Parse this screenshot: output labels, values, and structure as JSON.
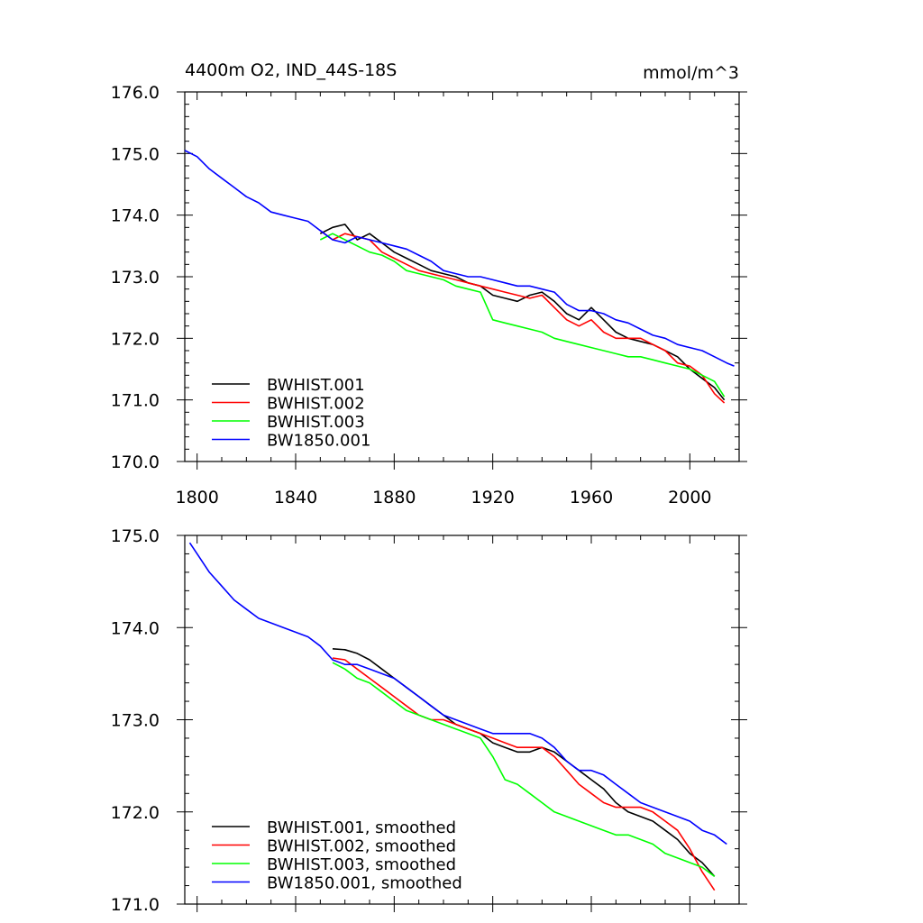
{
  "chart_data": [
    {
      "type": "line",
      "title": "4400m O2, IND_44S-18S",
      "units": "mmol/m^3",
      "xlim": [
        1795,
        2020
      ],
      "ylim": [
        170.0,
        176.0
      ],
      "xticks": [
        1800,
        1840,
        1880,
        1920,
        1960,
        2000
      ],
      "xtick_labels": [
        "1800",
        "1840",
        "1880",
        "1920",
        "1960",
        "2000"
      ],
      "yticks": [
        170.0,
        171.0,
        172.0,
        173.0,
        174.0,
        175.0,
        176.0
      ],
      "ytick_labels": [
        "170.0",
        "171.0",
        "172.0",
        "173.0",
        "174.0",
        "175.0",
        "176.0"
      ],
      "grid": false,
      "legend_position": "bottom-left",
      "series": [
        {
          "name": "BWHIST.001",
          "color": "#000000",
          "x": [
            1850,
            1855,
            1860,
            1865,
            1870,
            1875,
            1880,
            1885,
            1890,
            1895,
            1900,
            1905,
            1910,
            1915,
            1920,
            1925,
            1930,
            1935,
            1940,
            1945,
            1950,
            1955,
            1960,
            1965,
            1970,
            1975,
            1980,
            1985,
            1990,
            1995,
            2000,
            2005,
            2010,
            2014
          ],
          "y": [
            173.7,
            173.8,
            173.85,
            173.6,
            173.7,
            173.55,
            173.4,
            173.3,
            173.2,
            173.1,
            173.05,
            173.0,
            172.9,
            172.85,
            172.7,
            172.65,
            172.6,
            172.7,
            172.75,
            172.6,
            172.4,
            172.3,
            172.5,
            172.3,
            172.1,
            172.0,
            171.95,
            171.9,
            171.8,
            171.7,
            171.5,
            171.35,
            171.2,
            171.0
          ]
        },
        {
          "name": "BWHIST.002",
          "color": "#ff0000",
          "x": [
            1850,
            1855,
            1860,
            1865,
            1870,
            1875,
            1880,
            1885,
            1890,
            1895,
            1900,
            1905,
            1910,
            1915,
            1920,
            1925,
            1930,
            1935,
            1940,
            1945,
            1950,
            1955,
            1960,
            1965,
            1970,
            1975,
            1980,
            1985,
            1990,
            1995,
            2000,
            2005,
            2010,
            2014
          ],
          "y": [
            173.75,
            173.6,
            173.7,
            173.65,
            173.6,
            173.4,
            173.3,
            173.2,
            173.1,
            173.05,
            173.0,
            172.95,
            172.9,
            172.85,
            172.8,
            172.75,
            172.7,
            172.65,
            172.7,
            172.5,
            172.3,
            172.2,
            172.3,
            172.1,
            172.0,
            172.0,
            172.0,
            171.9,
            171.8,
            171.6,
            171.55,
            171.4,
            171.1,
            170.95
          ]
        },
        {
          "name": "BWHIST.003",
          "color": "#00ff00",
          "x": [
            1850,
            1855,
            1860,
            1865,
            1870,
            1875,
            1880,
            1885,
            1890,
            1895,
            1900,
            1905,
            1910,
            1915,
            1920,
            1925,
            1930,
            1935,
            1940,
            1945,
            1950,
            1955,
            1960,
            1965,
            1970,
            1975,
            1980,
            1985,
            1990,
            1995,
            2000,
            2005,
            2010,
            2014
          ],
          "y": [
            173.6,
            173.7,
            173.6,
            173.5,
            173.4,
            173.35,
            173.25,
            173.1,
            173.05,
            173.0,
            172.95,
            172.85,
            172.8,
            172.75,
            172.3,
            172.25,
            172.2,
            172.15,
            172.1,
            172.0,
            171.95,
            171.9,
            171.85,
            171.8,
            171.75,
            171.7,
            171.7,
            171.65,
            171.6,
            171.55,
            171.5,
            171.4,
            171.3,
            171.05
          ]
        },
        {
          "name": "BW1850.001",
          "color": "#0000ff",
          "x": [
            1795,
            1800,
            1805,
            1810,
            1815,
            1820,
            1825,
            1830,
            1835,
            1840,
            1845,
            1850,
            1855,
            1860,
            1865,
            1870,
            1875,
            1880,
            1885,
            1890,
            1895,
            1900,
            1905,
            1910,
            1915,
            1920,
            1925,
            1930,
            1935,
            1940,
            1945,
            1950,
            1955,
            1960,
            1965,
            1970,
            1975,
            1980,
            1985,
            1990,
            1995,
            2000,
            2005,
            2010,
            2015,
            2018
          ],
          "y": [
            175.05,
            174.95,
            174.75,
            174.6,
            174.45,
            174.3,
            174.2,
            174.05,
            174.0,
            173.95,
            173.9,
            173.75,
            173.6,
            173.55,
            173.65,
            173.6,
            173.55,
            173.5,
            173.45,
            173.35,
            173.25,
            173.1,
            173.05,
            173.0,
            173.0,
            172.95,
            172.9,
            172.85,
            172.85,
            172.8,
            172.75,
            172.55,
            172.45,
            172.45,
            172.4,
            172.3,
            172.25,
            172.15,
            172.05,
            172.0,
            171.9,
            171.85,
            171.8,
            171.7,
            171.6,
            171.55
          ]
        }
      ]
    },
    {
      "type": "line",
      "xlim": [
        1795,
        2020
      ],
      "ylim": [
        171.0,
        175.0
      ],
      "xticks": [
        1800,
        1840,
        1880,
        1920,
        1960,
        2000
      ],
      "yticks": [
        171.0,
        172.0,
        173.0,
        174.0,
        175.0
      ],
      "ytick_labels": [
        "171.0",
        "172.0",
        "173.0",
        "174.0",
        "175.0"
      ],
      "grid": false,
      "legend_position": "bottom-left",
      "series": [
        {
          "name": "BWHIST.001, smoothed",
          "color": "#000000",
          "x": [
            1855,
            1860,
            1865,
            1870,
            1875,
            1880,
            1885,
            1890,
            1895,
            1900,
            1905,
            1910,
            1915,
            1920,
            1925,
            1930,
            1935,
            1940,
            1945,
            1950,
            1955,
            1960,
            1965,
            1970,
            1975,
            1980,
            1985,
            1990,
            1995,
            2000,
            2005,
            2010
          ],
          "y": [
            173.77,
            173.76,
            173.72,
            173.65,
            173.55,
            173.45,
            173.35,
            173.25,
            173.15,
            173.05,
            172.95,
            172.9,
            172.85,
            172.75,
            172.7,
            172.65,
            172.65,
            172.7,
            172.65,
            172.55,
            172.45,
            172.35,
            172.25,
            172.1,
            172.0,
            171.95,
            171.9,
            171.8,
            171.7,
            171.55,
            171.45,
            171.3
          ]
        },
        {
          "name": "BWHIST.002, smoothed",
          "color": "#ff0000",
          "x": [
            1855,
            1860,
            1865,
            1870,
            1875,
            1880,
            1885,
            1890,
            1895,
            1900,
            1905,
            1910,
            1915,
            1920,
            1925,
            1930,
            1935,
            1940,
            1945,
            1950,
            1955,
            1960,
            1965,
            1970,
            1975,
            1980,
            1985,
            1990,
            1995,
            2000,
            2005,
            2010
          ],
          "y": [
            173.67,
            173.65,
            173.55,
            173.45,
            173.35,
            173.25,
            173.15,
            173.05,
            173.0,
            173.0,
            172.95,
            172.9,
            172.85,
            172.8,
            172.75,
            172.7,
            172.7,
            172.7,
            172.6,
            172.45,
            172.3,
            172.2,
            172.1,
            172.05,
            172.05,
            172.05,
            172.0,
            171.9,
            171.8,
            171.6,
            171.35,
            171.15
          ]
        },
        {
          "name": "BWHIST.003, smoothed",
          "color": "#00ff00",
          "x": [
            1855,
            1860,
            1865,
            1870,
            1875,
            1880,
            1885,
            1890,
            1895,
            1900,
            1905,
            1910,
            1915,
            1920,
            1925,
            1930,
            1935,
            1940,
            1945,
            1950,
            1955,
            1960,
            1965,
            1970,
            1975,
            1980,
            1985,
            1990,
            1995,
            2000,
            2005,
            2010
          ],
          "y": [
            173.62,
            173.55,
            173.45,
            173.4,
            173.3,
            173.2,
            173.1,
            173.05,
            173.0,
            172.95,
            172.9,
            172.85,
            172.8,
            172.6,
            172.35,
            172.3,
            172.2,
            172.1,
            172.0,
            171.95,
            171.9,
            171.85,
            171.8,
            171.75,
            171.75,
            171.7,
            171.65,
            171.55,
            171.5,
            171.45,
            171.4,
            171.3
          ]
        },
        {
          "name": "BW1850.001, smoothed",
          "color": "#0000ff",
          "x": [
            1797,
            1800,
            1805,
            1810,
            1815,
            1820,
            1825,
            1830,
            1835,
            1840,
            1845,
            1850,
            1855,
            1860,
            1865,
            1870,
            1875,
            1880,
            1885,
            1890,
            1895,
            1900,
            1905,
            1910,
            1915,
            1920,
            1925,
            1930,
            1935,
            1940,
            1945,
            1950,
            1955,
            1960,
            1965,
            1970,
            1975,
            1980,
            1985,
            1990,
            1995,
            2000,
            2005,
            2010,
            2015
          ],
          "y": [
            174.92,
            174.8,
            174.6,
            174.45,
            174.3,
            174.2,
            174.1,
            174.05,
            174.0,
            173.95,
            173.9,
            173.8,
            173.65,
            173.6,
            173.6,
            173.55,
            173.5,
            173.45,
            173.35,
            173.25,
            173.15,
            173.05,
            173.0,
            172.95,
            172.9,
            172.85,
            172.85,
            172.85,
            172.85,
            172.8,
            172.7,
            172.55,
            172.45,
            172.45,
            172.4,
            172.3,
            172.2,
            172.1,
            172.05,
            172.0,
            171.95,
            171.9,
            171.8,
            171.75,
            171.65
          ]
        }
      ]
    }
  ]
}
